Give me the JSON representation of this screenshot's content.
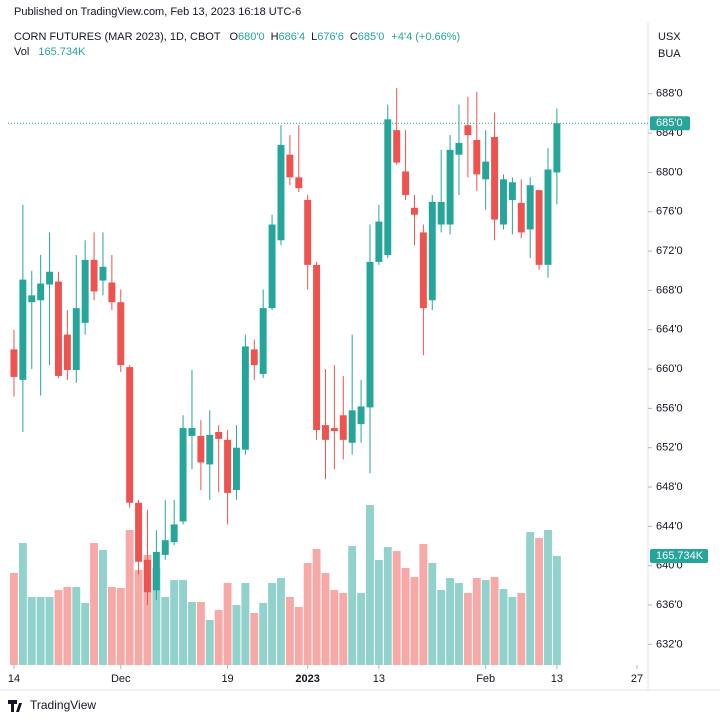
{
  "header": {
    "published": "Published on TradingView.com, Feb 13, 2023 16:18 UTC-6",
    "symbol": "CORN FUTURES (MAR 2023), 1D, CBOT",
    "ohlc": [
      {
        "key": "O",
        "value": "680'0"
      },
      {
        "key": "H",
        "value": "686'4"
      },
      {
        "key": "L",
        "value": "676'6"
      },
      {
        "key": "C",
        "value": "685'0"
      }
    ],
    "change": "+4'4 (+0.66%)",
    "vol_key": "Vol",
    "vol_value": "165.734K",
    "currency": "USX",
    "unit": "BUA"
  },
  "chart_data": {
    "type": "candlestick",
    "up_color": "#26a69a",
    "down_color": "#ef5350",
    "volume_up_color": "#92d2cc",
    "volume_down_color": "#f7a9a7",
    "grid": false,
    "open": [
      662,
      658.9,
      666.8,
      667,
      668.6,
      668.9,
      663.5,
      659.9,
      664.7,
      671.1,
      669,
      668.8,
      666.8,
      660.2,
      646.4,
      640.6,
      637.5,
      641.1,
      642.4,
      644.5,
      653.2,
      653.2,
      650.3,
      653.6,
      652.8,
      647.7,
      651.8,
      662,
      659.5,
      666.2,
      673.1,
      681.8,
      679.5,
      677.2,
      670.6,
      654.3,
      654,
      655.3,
      652.5,
      654.4,
      656.1,
      670.9,
      671.6,
      684.3,
      680.1,
      676.4,
      673.9,
      667,
      674.7,
      674.7,
      681.8,
      684.8,
      683.3,
      679.3,
      683.6,
      674.7,
      677.2,
      676.9,
      674.2,
      678.2,
      670.6,
      680
    ],
    "high": [
      664,
      676.7,
      670,
      671.6,
      673.9,
      669.9,
      666,
      671.6,
      673.1,
      673.9,
      673.9,
      671.6,
      668.1,
      660.4,
      646.7,
      645.7,
      643.6,
      646.7,
      646.7,
      655.3,
      659.9,
      654.8,
      655.8,
      654.3,
      653.8,
      654.3,
      663.5,
      663,
      668.1,
      675.7,
      684.8,
      683.8,
      684.8,
      677.7,
      670.9,
      660,
      660.4,
      659.3,
      663.5,
      658.9,
      674.7,
      676.7,
      686.9,
      688.6,
      684.3,
      677.7,
      674.7,
      677.7,
      682.3,
      683.8,
      686.9,
      687.7,
      688.2,
      684.3,
      686.1,
      679.8,
      679.5,
      679.3,
      679.5,
      678.2,
      682.5,
      686.5
    ],
    "low": [
      657.2,
      653.6,
      660,
      657.3,
      660.4,
      659.1,
      658.9,
      658.6,
      663.5,
      667,
      667.5,
      666,
      659.7,
      645.9,
      639.1,
      636,
      636.5,
      640.6,
      642.1,
      644.2,
      649.8,
      647.7,
      646.7,
      647.5,
      644.2,
      646.7,
      651.3,
      658.9,
      659.1,
      666,
      672.6,
      678.7,
      678,
      668.1,
      652.8,
      648.8,
      649.8,
      650.8,
      651.3,
      652.5,
      649.4,
      670.6,
      671.3,
      680.8,
      677.2,
      672.6,
      661.4,
      666,
      673.9,
      673.7,
      677.7,
      679.5,
      678.1,
      676.2,
      673.1,
      674.2,
      673.7,
      673.3,
      671.3,
      670.1,
      669.3,
      676.75
    ],
    "close": [
      659.2,
      669.1,
      667.5,
      668.7,
      669.9,
      659.3,
      659.9,
      666.2,
      671.1,
      667.9,
      670.4,
      666.8,
      660.4,
      646.4,
      640.4,
      637.3,
      641.4,
      642.6,
      644.2,
      654,
      654,
      650.5,
      653.3,
      652.9,
      647.4,
      652,
      662.3,
      660.4,
      666.2,
      674.7,
      682.8,
      679.5,
      678.4,
      670.6,
      653.8,
      652.8,
      653.7,
      652.8,
      655.8,
      656.2,
      670.9,
      675,
      685.4,
      681,
      677.7,
      675.7,
      666.2,
      677,
      677,
      682.3,
      683,
      683.8,
      679.8,
      681.1,
      675.2,
      679.3,
      679,
      673.9,
      678.7,
      670.6,
      680.3,
      685
    ],
    "volume": {
      "values": [
        139.9,
        185.5,
        103.4,
        103.4,
        103.4,
        114,
        118.6,
        118.6,
        94.3,
        185.5,
        174.9,
        118.6,
        117.1,
        205.3,
        144.4,
        167.3,
        147.5,
        103.4,
        129.2,
        129.2,
        95.8,
        95.8,
        68.4,
        83.6,
        124.7,
        91.2,
        124.7,
        79.1,
        94.3,
        124.7,
        132.3,
        103.4,
        88.2,
        155.1,
        176.4,
        139.9,
        114,
        109.5,
        180.9,
        109.5,
        243.3,
        159.7,
        179.4,
        173.3,
        147.5,
        133.8,
        184,
        155.1,
        114,
        132.3,
        124.7,
        109.5,
        132.3,
        129.2,
        133.8,
        115.6,
        103.4,
        109.5,
        202.2,
        193.1,
        205.3,
        165.734
      ],
      "value_labels": [
        null,
        null,
        null,
        null,
        null,
        null,
        null,
        null,
        null,
        null,
        null,
        null,
        null,
        null,
        null,
        null,
        null,
        null,
        null,
        null,
        null,
        null,
        null,
        null,
        null,
        null,
        null,
        null,
        null,
        null,
        null,
        null,
        null,
        null,
        null,
        null,
        null,
        null,
        null,
        null,
        null,
        null,
        null,
        null,
        null,
        null,
        null,
        null,
        null,
        null,
        null,
        null,
        null,
        null,
        null,
        null,
        null,
        null,
        null,
        null,
        null,
        "165.734K"
      ]
    },
    "last_price": {
      "value": 685,
      "label": "685'0"
    },
    "ylim": [
      629.9,
      695.3
    ],
    "yticks": [
      {
        "value": 632,
        "label": "632'0"
      },
      {
        "value": 636,
        "label": "636'0"
      },
      {
        "value": 640,
        "label": "640'0"
      },
      {
        "value": 644,
        "label": "644'0"
      },
      {
        "value": 648,
        "label": "648'0"
      },
      {
        "value": 652,
        "label": "652'0"
      },
      {
        "value": 656,
        "label": "656'0"
      },
      {
        "value": 660,
        "label": "660'0"
      },
      {
        "value": 664,
        "label": "664'0"
      },
      {
        "value": 668,
        "label": "668'0"
      },
      {
        "value": 672,
        "label": "672'0"
      },
      {
        "value": 676,
        "label": "676'0"
      },
      {
        "value": 680,
        "label": "680'0"
      },
      {
        "value": 684,
        "label": "684'0"
      },
      {
        "value": 688,
        "label": "688'0"
      }
    ],
    "xlim": [
      -0.67,
      70.9
    ],
    "xticks": [
      {
        "value": 0,
        "label": "14"
      },
      {
        "value": 12,
        "label": "Dec"
      },
      {
        "value": 24,
        "label": "19"
      },
      {
        "value": 33,
        "label": "2023"
      },
      {
        "value": 41,
        "label": "13"
      },
      {
        "value": 53,
        "label": "Feb"
      },
      {
        "value": 61,
        "label": "13"
      },
      {
        "value": 70,
        "label": "27"
      }
    ]
  },
  "footer": {
    "brand": "TradingView"
  }
}
